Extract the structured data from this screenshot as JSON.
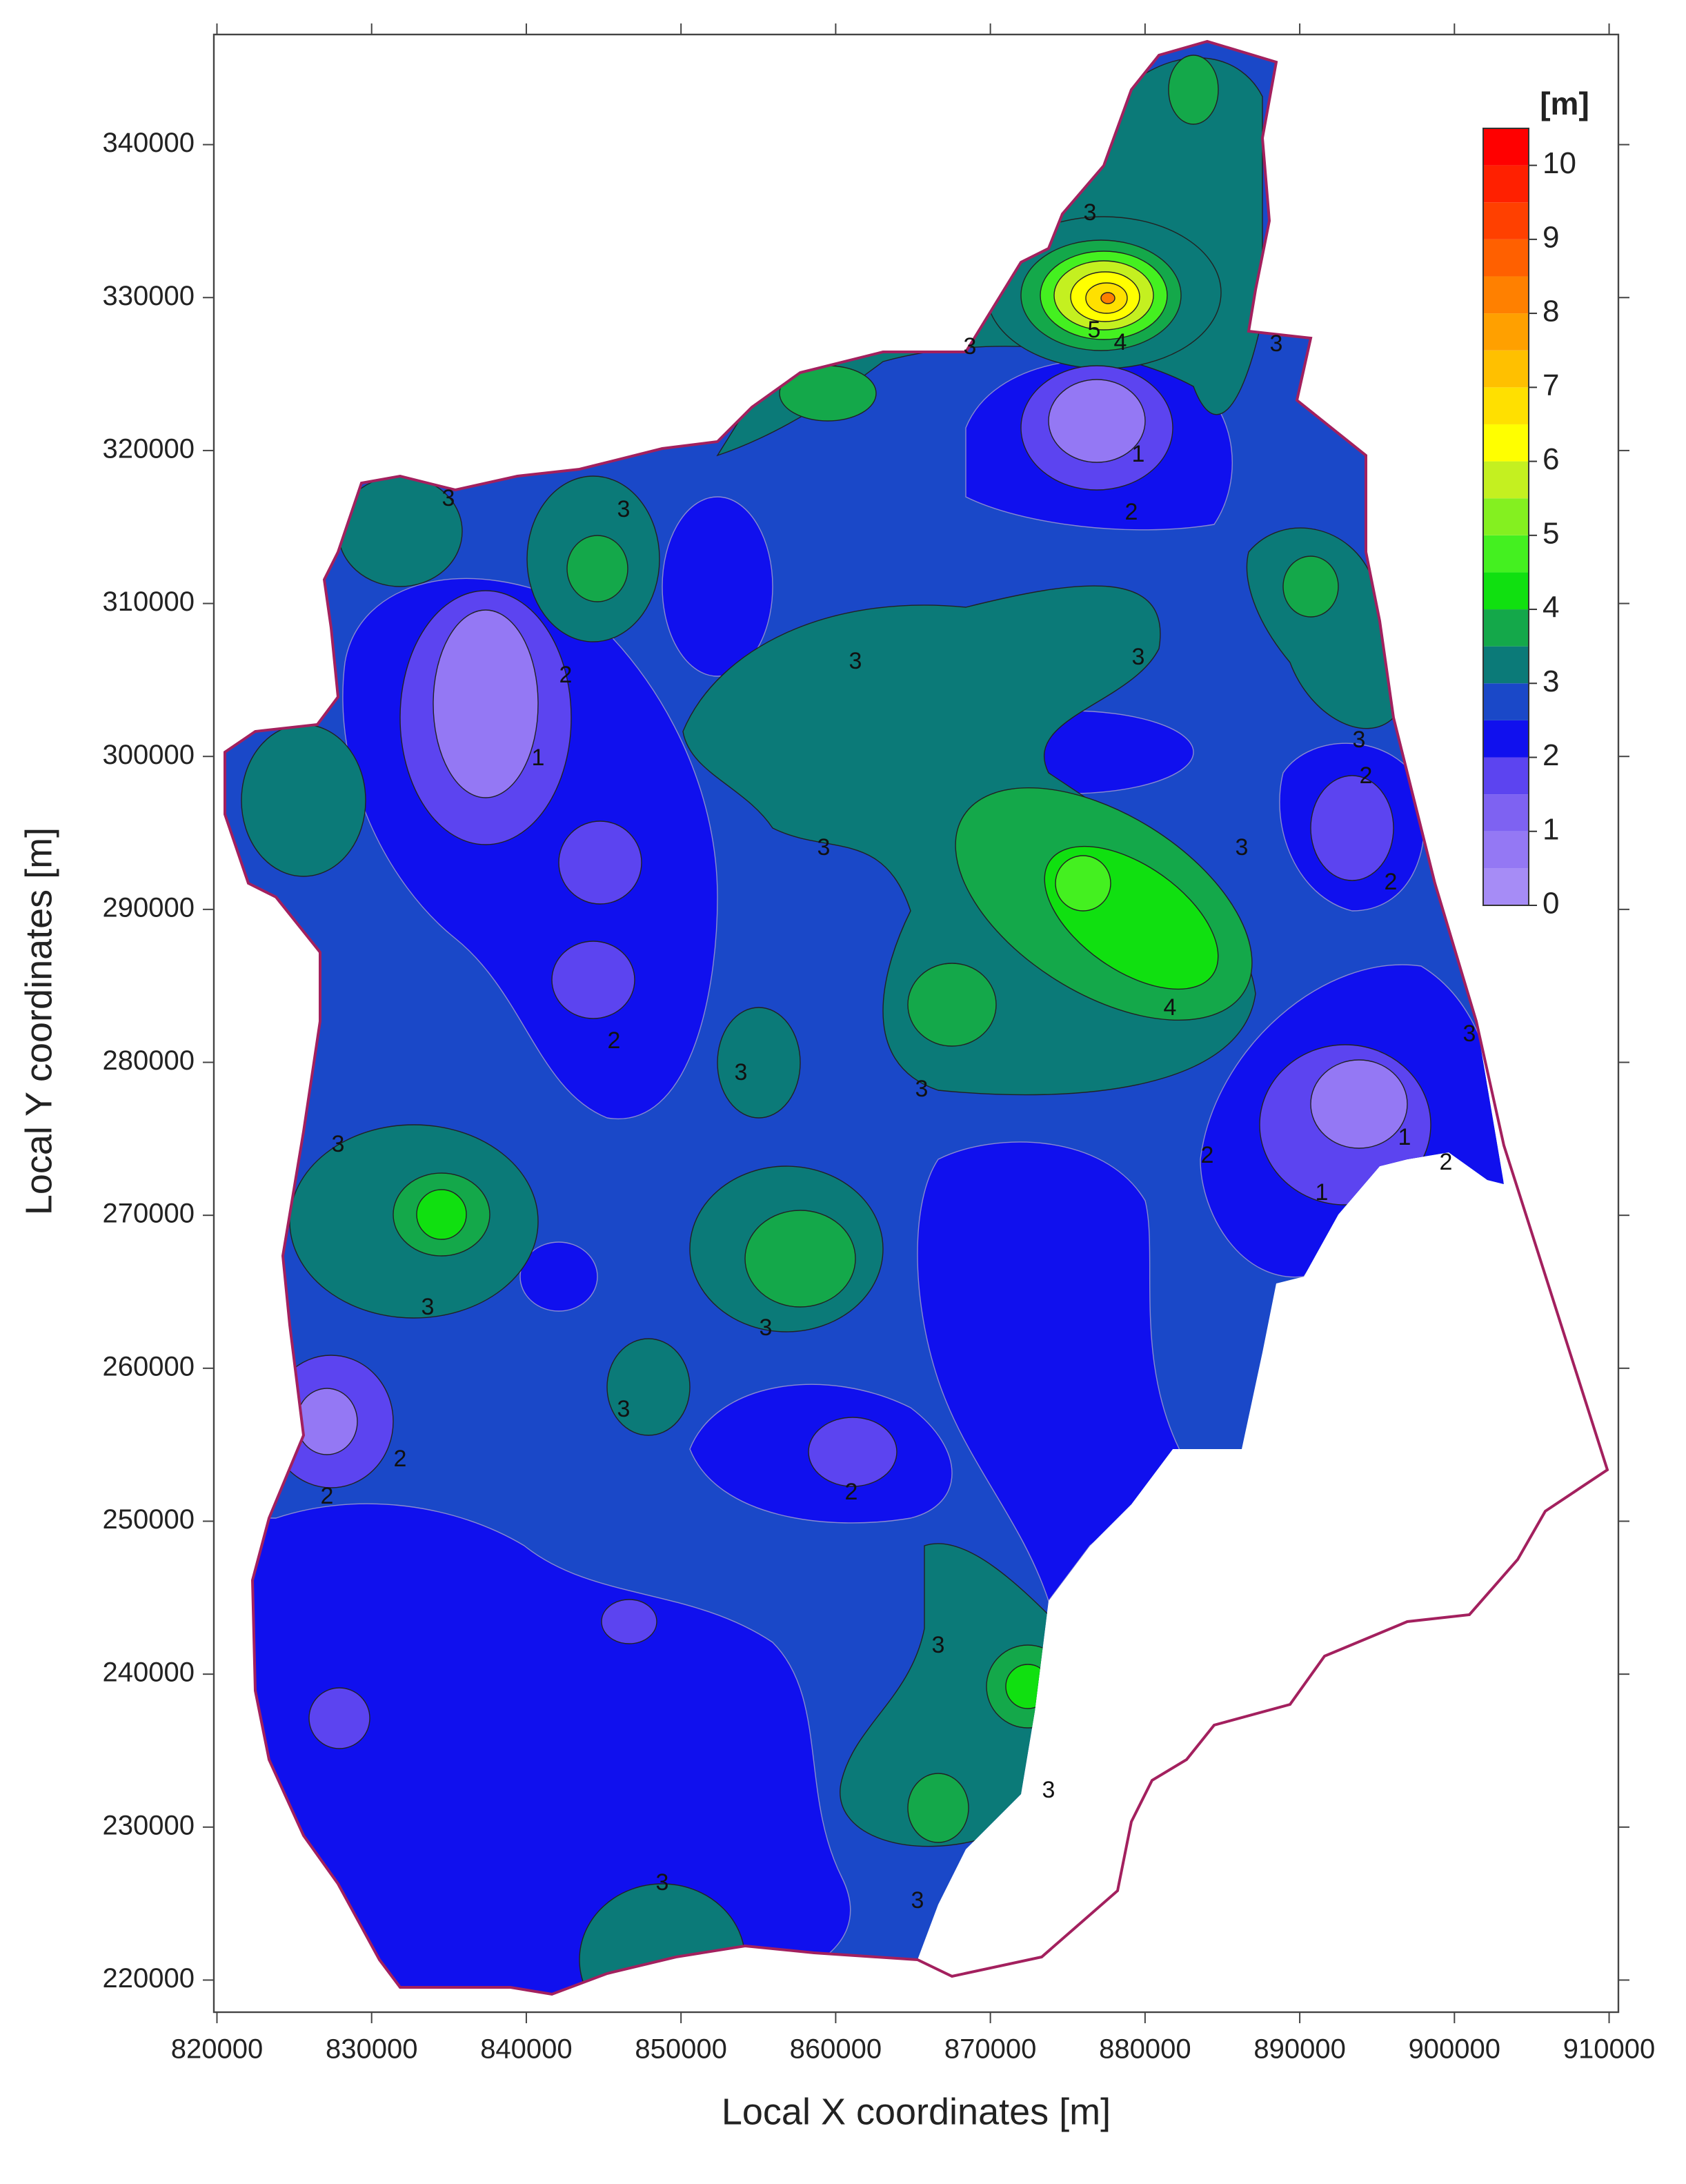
{
  "chart_data": {
    "type": "contour",
    "xlabel": "Local X coordinates [m]",
    "ylabel": "Local Y coordinates [m]",
    "xlim": [
      819800,
      910600
    ],
    "ylim": [
      217900,
      347200
    ],
    "xticks": [
      820000,
      830000,
      840000,
      850000,
      860000,
      870000,
      880000,
      890000,
      900000,
      910000
    ],
    "yticks": [
      220000,
      230000,
      240000,
      250000,
      260000,
      270000,
      280000,
      290000,
      300000,
      310000,
      320000,
      330000,
      340000
    ],
    "boundary_color": "#a3205e",
    "colorbar": {
      "title": "[m]",
      "levels": [
        0,
        0.5,
        1,
        1.5,
        2,
        2.5,
        3,
        3.5,
        4,
        4.5,
        5,
        5.5,
        6,
        6.5,
        7,
        7.5,
        8,
        8.5,
        9,
        9.5,
        10,
        10.5
      ],
      "colors": [
        "#a68cf6",
        "#9478f4",
        "#7e62f2",
        "#5c44f0",
        "#1010ee",
        "#1a48c8",
        "#0b7a78",
        "#14a84a",
        "#10e010",
        "#44f020",
        "#84f020",
        "#c4f020",
        "#ffff00",
        "#ffe000",
        "#ffc000",
        "#ffa000",
        "#ff8000",
        "#ff6000",
        "#ff4000",
        "#ff2000",
        "#ff0000"
      ],
      "ticks": [
        0,
        1,
        2,
        3,
        4,
        5,
        6,
        7,
        8,
        9,
        10
      ]
    },
    "contour_labels": [
      "3",
      "3",
      "3",
      "3",
      "3",
      "3",
      "3",
      "3",
      "3",
      "3",
      "3",
      "3",
      "3",
      "3",
      "3",
      "3",
      "3",
      "3",
      "3",
      "3",
      "3",
      "2",
      "2",
      "2",
      "2",
      "2",
      "2",
      "2",
      "2",
      "2",
      "2",
      "1",
      "1",
      "1",
      "1",
      "4",
      "4",
      "5"
    ]
  }
}
